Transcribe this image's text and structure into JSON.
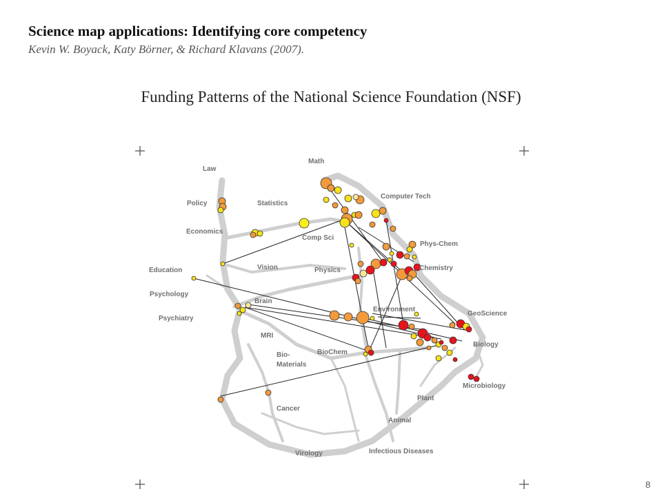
{
  "slide": {
    "title": "Science map applications: Identifying core competency",
    "citation": "Kevin W. Boyack, Katy Börner, & Richard Klavans (2007).",
    "map_title": "Funding Patterns of the National Science Foundation (NSF)",
    "page_number": "8"
  },
  "map": {
    "labels": [
      {
        "key": "law",
        "text": "Law"
      },
      {
        "key": "math",
        "text": "Math"
      },
      {
        "key": "policy",
        "text": "Policy"
      },
      {
        "key": "statistics",
        "text": "Statistics"
      },
      {
        "key": "computer-tech",
        "text": "Computer Tech"
      },
      {
        "key": "economics",
        "text": "Economics"
      },
      {
        "key": "compsci",
        "text": "Comp Sci"
      },
      {
        "key": "phys-chem",
        "text": "Phys-Chem"
      },
      {
        "key": "education",
        "text": "Education"
      },
      {
        "key": "vision",
        "text": "Vision"
      },
      {
        "key": "physics",
        "text": "Physics"
      },
      {
        "key": "chemistry",
        "text": "Chemistry"
      },
      {
        "key": "psychology",
        "text": "Psychology"
      },
      {
        "key": "brain",
        "text": "Brain"
      },
      {
        "key": "environment",
        "text": "Environment"
      },
      {
        "key": "geoscience",
        "text": "GeoScience"
      },
      {
        "key": "psychiatry",
        "text": "Psychiatry"
      },
      {
        "key": "mri",
        "text": "MRI"
      },
      {
        "key": "biology",
        "text": "Biology"
      },
      {
        "key": "biochem",
        "text": "BioChem"
      },
      {
        "key": "bio-materials-1",
        "text": "Bio-"
      },
      {
        "key": "bio-materials-2",
        "text": "Materials"
      },
      {
        "key": "microbiology",
        "text": "Microbiology"
      },
      {
        "key": "plant",
        "text": "Plant"
      },
      {
        "key": "cancer",
        "text": "Cancer"
      },
      {
        "key": "animal",
        "text": "Animal"
      },
      {
        "key": "infectious-diseases",
        "text": "Infectious Diseases"
      },
      {
        "key": "virology",
        "text": "Virology"
      }
    ],
    "node_colors": {
      "red": "#e8141b",
      "orange": "#f29a3c",
      "yellow": "#f7e21a",
      "light": "#fbe79a"
    },
    "background_color": "#cfcfcf",
    "edge_color": "#222222"
  }
}
